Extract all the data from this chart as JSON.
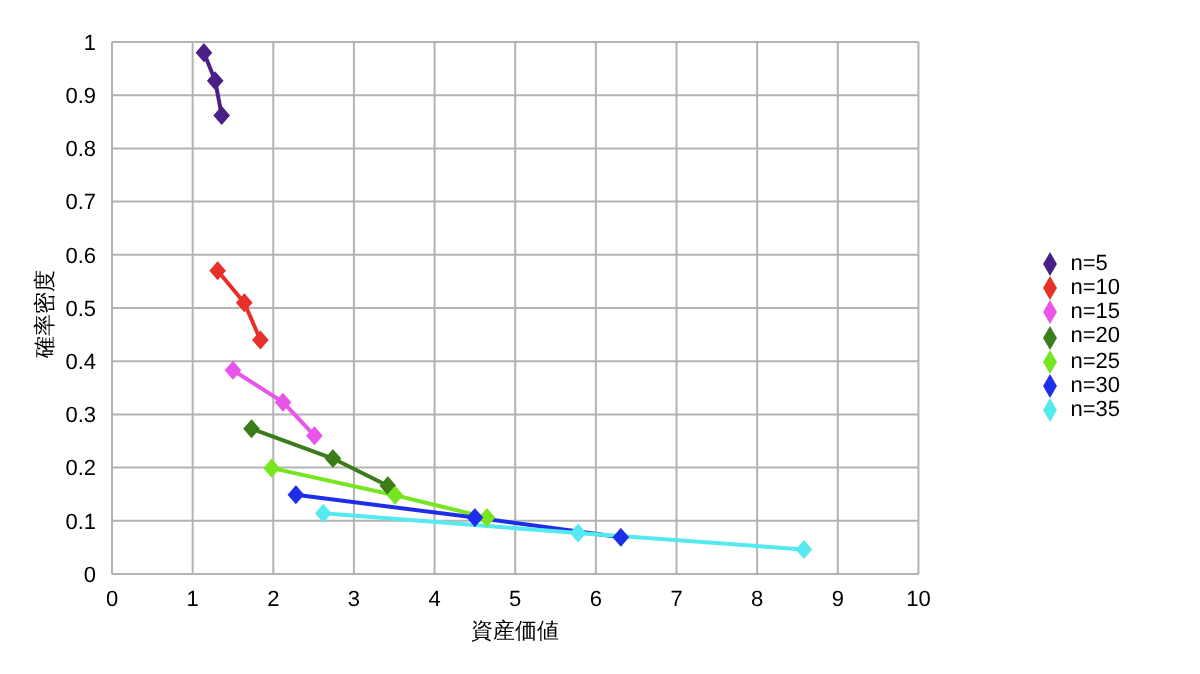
{
  "chart_data": {
    "type": "line",
    "xlabel": "資産価値",
    "ylabel": "確率密度",
    "xlim": [
      0,
      10
    ],
    "xticks": [
      0,
      1,
      2,
      3,
      4,
      5,
      6,
      7,
      8,
      9,
      10
    ],
    "ylim": [
      0,
      1
    ],
    "yticks": [
      0,
      0.1,
      0.2,
      0.3,
      0.4,
      0.5,
      0.6,
      0.7,
      0.8,
      0.9,
      1
    ],
    "grid": true,
    "legend": "right",
    "marker": "diamond",
    "line_style": "solid",
    "series": [
      {
        "name": "n=5",
        "color": "#4b2086",
        "x": [
          1.14,
          1.28,
          1.36
        ],
        "values": [
          0.98,
          0.927,
          0.862
        ]
      },
      {
        "name": "n=10",
        "color": "#e8302a",
        "x": [
          1.31,
          1.64,
          1.84
        ],
        "values": [
          0.57,
          0.51,
          0.44
        ]
      },
      {
        "name": "n=15",
        "color": "#e855e8",
        "x": [
          1.5,
          2.12,
          2.51
        ],
        "values": [
          0.383,
          0.323,
          0.26
        ]
      },
      {
        "name": "n=20",
        "color": "#3a7d1a",
        "x": [
          1.73,
          2.74,
          3.42
        ],
        "values": [
          0.273,
          0.217,
          0.166
        ]
      },
      {
        "name": "n=25",
        "color": "#77e620",
        "x": [
          1.98,
          3.51,
          4.65
        ],
        "values": [
          0.199,
          0.148,
          0.106
        ]
      },
      {
        "name": "n=30",
        "color": "#1e2ee8",
        "x": [
          2.28,
          4.5,
          6.31
        ],
        "values": [
          0.149,
          0.106,
          0.069
        ]
      },
      {
        "name": "n=35",
        "color": "#55eaf0",
        "x": [
          2.62,
          5.78,
          8.58
        ],
        "values": [
          0.114,
          0.077,
          0.046
        ]
      }
    ]
  }
}
